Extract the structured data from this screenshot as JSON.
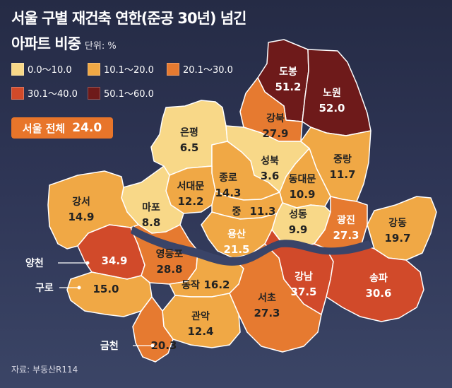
{
  "header": {
    "title_line1": "서울 구별 재건축 연한(준공 30년) 넘긴",
    "title_line2": "아파트 비중",
    "unit": "단위: %"
  },
  "legend": [
    {
      "label": "0.0～10.0",
      "color": "#f8d888"
    },
    {
      "label": "10.1～20.0",
      "color": "#f0a845"
    },
    {
      "label": "20.1～30.0",
      "color": "#e67a30"
    },
    {
      "label": "30.1～40.0",
      "color": "#d14a2a"
    },
    {
      "label": "50.1～60.0",
      "color": "#6e1a1a"
    }
  ],
  "total": {
    "label": "서울 전체",
    "value": "24.0"
  },
  "districts": {
    "dobong": {
      "name": "도봉",
      "value": "51.2"
    },
    "nowon": {
      "name": "노원",
      "value": "52.0"
    },
    "gangbuk": {
      "name": "강북",
      "value": "27.9"
    },
    "eunpyeong": {
      "name": "은평",
      "value": "6.5"
    },
    "seongbuk": {
      "name": "성북",
      "value": "3.6"
    },
    "jungnang": {
      "name": "중랑",
      "value": "11.7"
    },
    "jongno": {
      "name": "종로",
      "value": "14.3"
    },
    "seodaemun": {
      "name": "서대문",
      "value": "12.2"
    },
    "dongdaemun": {
      "name": "동대문",
      "value": "10.9"
    },
    "mapo": {
      "name": "마포",
      "value": "8.8"
    },
    "jung": {
      "name": "중",
      "value": "11.3"
    },
    "gangseo": {
      "name": "강서",
      "value": "14.9"
    },
    "seongdong": {
      "name": "성동",
      "value": "9.9"
    },
    "gwangjin": {
      "name": "광진",
      "value": "27.3"
    },
    "gangdong": {
      "name": "강동",
      "value": "19.7"
    },
    "yongsan": {
      "name": "용산",
      "value": "21.5"
    },
    "yangcheon": {
      "name": "양천",
      "value": "34.9"
    },
    "yeongdeungpo": {
      "name": "영등포",
      "value": "28.8"
    },
    "guro": {
      "name": "구로",
      "value": "15.0"
    },
    "dongjak": {
      "name": "동작",
      "value": "16.2"
    },
    "gangnam": {
      "name": "강남",
      "value": "37.5"
    },
    "songpa": {
      "name": "송파",
      "value": "30.6"
    },
    "seocho": {
      "name": "서초",
      "value": "27.3"
    },
    "gwanak": {
      "name": "관악",
      "value": "12.4"
    },
    "geumcheon": {
      "name": "금천",
      "value": "20.3"
    }
  },
  "source": "자료: 부동산R114"
}
